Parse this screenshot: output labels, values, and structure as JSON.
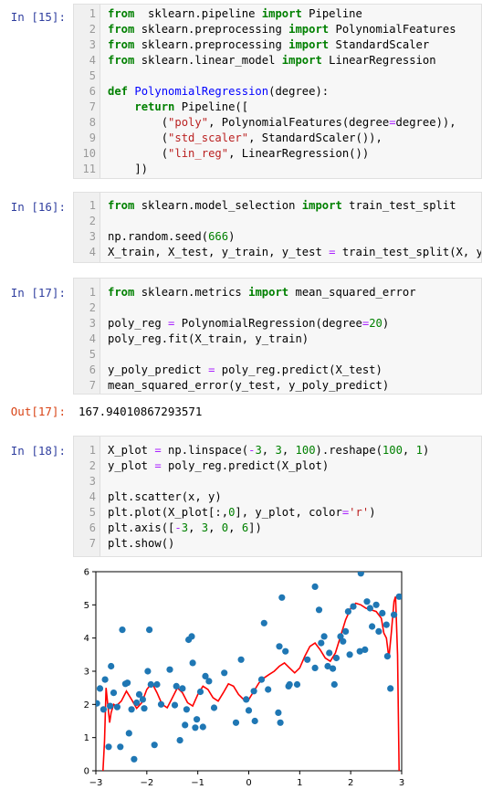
{
  "cells": [
    {
      "prompt": "In  [15]:",
      "lines": [
        [
          "1",
          [
            [
              "kw",
              "from"
            ],
            [
              "",
              "  sklearn.pipeline "
            ],
            [
              "kw",
              "import"
            ],
            [
              "",
              " Pipeline"
            ]
          ]
        ],
        [
          "2",
          [
            [
              "kw",
              "from"
            ],
            [
              "",
              " sklearn.preprocessing "
            ],
            [
              "kw",
              "import"
            ],
            [
              "",
              " PolynomialFeatures"
            ]
          ]
        ],
        [
          "3",
          [
            [
              "kw",
              "from"
            ],
            [
              "",
              " sklearn.preprocessing "
            ],
            [
              "kw",
              "import"
            ],
            [
              "",
              " StandardScaler"
            ]
          ]
        ],
        [
          "4",
          [
            [
              "kw",
              "from"
            ],
            [
              "",
              " sklearn.linear_model "
            ],
            [
              "kw",
              "import"
            ],
            [
              "",
              " LinearRegression"
            ]
          ]
        ],
        [
          "5",
          []
        ],
        [
          "6",
          [
            [
              "kw",
              "def"
            ],
            [
              "",
              " "
            ],
            [
              "fn",
              "PolynomialRegression"
            ],
            [
              "",
              "(degree):"
            ]
          ]
        ],
        [
          "7",
          [
            [
              "",
              "    "
            ],
            [
              "kw",
              "return"
            ],
            [
              "",
              " Pipeline(["
            ]
          ]
        ],
        [
          "8",
          [
            [
              "",
              "        ("
            ],
            [
              "st",
              "\"poly\""
            ],
            [
              "",
              ", PolynomialFeatures(degree"
            ],
            [
              "op",
              "="
            ],
            [
              "",
              "degree)),"
            ]
          ]
        ],
        [
          "9",
          [
            [
              "",
              "        ("
            ],
            [
              "st",
              "\"std_scaler\""
            ],
            [
              "",
              ", StandardScaler()),"
            ]
          ]
        ],
        [
          "10",
          [
            [
              "",
              "        ("
            ],
            [
              "st",
              "\"lin_reg\""
            ],
            [
              "",
              ", LinearRegression())"
            ]
          ]
        ],
        [
          "11",
          [
            [
              "",
              "    ])"
            ]
          ]
        ]
      ]
    },
    {
      "prompt": "In  [16]:",
      "lines": [
        [
          "1",
          [
            [
              "kw",
              "from"
            ],
            [
              "",
              " sklearn.model_selection "
            ],
            [
              "kw",
              "import"
            ],
            [
              "",
              " train_test_split"
            ]
          ]
        ],
        [
          "2",
          []
        ],
        [
          "3",
          [
            [
              "",
              "np.random.seed("
            ],
            [
              "nm",
              "666"
            ],
            [
              "",
              ")"
            ]
          ]
        ],
        [
          "4",
          [
            [
              "",
              "X_train, X_test, y_train, y_test "
            ],
            [
              "op",
              "="
            ],
            [
              "",
              " train_test_split(X, y)"
            ]
          ]
        ]
      ]
    },
    {
      "prompt": "In  [17]:",
      "lines": [
        [
          "1",
          [
            [
              "kw",
              "from"
            ],
            [
              "",
              " sklearn.metrics "
            ],
            [
              "kw",
              "import"
            ],
            [
              "",
              " mean_squared_error"
            ]
          ]
        ],
        [
          "2",
          []
        ],
        [
          "3",
          [
            [
              "",
              "poly_reg "
            ],
            [
              "op",
              "="
            ],
            [
              "",
              " PolynomialRegression(degree"
            ],
            [
              "op",
              "="
            ],
            [
              "nm",
              "20"
            ],
            [
              "",
              ")"
            ]
          ]
        ],
        [
          "4",
          [
            [
              "",
              "poly_reg.fit(X_train, y_train)"
            ]
          ]
        ],
        [
          "5",
          []
        ],
        [
          "6",
          [
            [
              "",
              "y_poly_predict "
            ],
            [
              "op",
              "="
            ],
            [
              "",
              " poly_reg.predict(X_test)"
            ]
          ]
        ],
        [
          "7",
          [
            [
              "",
              "mean_squared_error(y_test, y_poly_predict)"
            ]
          ]
        ]
      ]
    },
    {
      "prompt": "In  [18]:",
      "lines": [
        [
          "1",
          [
            [
              "",
              "X_plot "
            ],
            [
              "op",
              "="
            ],
            [
              "",
              " np.linspace("
            ],
            [
              "op",
              "-"
            ],
            [
              "nm",
              "3"
            ],
            [
              "",
              ", "
            ],
            [
              "nm",
              "3"
            ],
            [
              "",
              ", "
            ],
            [
              "nm",
              "100"
            ],
            [
              "",
              ").reshape("
            ],
            [
              "nm",
              "100"
            ],
            [
              "",
              ", "
            ],
            [
              "nm",
              "1"
            ],
            [
              "",
              ")"
            ]
          ]
        ],
        [
          "2",
          [
            [
              "",
              "y_plot "
            ],
            [
              "op",
              "="
            ],
            [
              "",
              " poly_reg.predict(X_plot)"
            ]
          ]
        ],
        [
          "3",
          []
        ],
        [
          "4",
          [
            [
              "",
              "plt.scatter(x, y)"
            ]
          ]
        ],
        [
          "5",
          [
            [
              "",
              "plt.plot(X_plot[:,"
            ],
            [
              "nm",
              "0"
            ],
            [
              "",
              "], y_plot, color"
            ],
            [
              "op",
              "="
            ],
            [
              "st",
              "'r'"
            ],
            [
              "",
              ")"
            ]
          ]
        ],
        [
          "6",
          [
            [
              "",
              "plt.axis(["
            ],
            [
              "op",
              "-"
            ],
            [
              "nm",
              "3"
            ],
            [
              "",
              ", "
            ],
            [
              "nm",
              "3"
            ],
            [
              "",
              ", "
            ],
            [
              "nm",
              "0"
            ],
            [
              "",
              ", "
            ],
            [
              "nm",
              "6"
            ],
            [
              "",
              "])"
            ]
          ]
        ],
        [
          "7",
          [
            [
              "",
              "plt.show()"
            ]
          ]
        ]
      ]
    }
  ],
  "output": {
    "prompt": "Out[17]:",
    "value": "167.94010867293571"
  },
  "chart_data": {
    "type": "scatter",
    "xlim": [
      -3,
      3
    ],
    "ylim": [
      0,
      6
    ],
    "x_ticks": [
      "−3",
      "−2",
      "−1",
      "0",
      "1",
      "2",
      "3"
    ],
    "y_ticks": [
      "0",
      "1",
      "2",
      "3",
      "4",
      "5",
      "6"
    ],
    "grid": false,
    "scatter_color": "#1f77b4",
    "line_color": "#ff0000",
    "points": [
      [
        -2.98,
        2.03
      ],
      [
        -2.92,
        2.48
      ],
      [
        -2.85,
        1.85
      ],
      [
        -2.82,
        2.75
      ],
      [
        -2.75,
        0.72
      ],
      [
        -2.72,
        1.95
      ],
      [
        -2.7,
        3.15
      ],
      [
        -2.65,
        2.35
      ],
      [
        -2.58,
        1.92
      ],
      [
        -2.52,
        0.72
      ],
      [
        -2.48,
        4.25
      ],
      [
        -2.42,
        2.62
      ],
      [
        -2.38,
        2.65
      ],
      [
        -2.35,
        1.13
      ],
      [
        -2.3,
        1.85
      ],
      [
        -2.25,
        0.35
      ],
      [
        -2.2,
        2.05
      ],
      [
        -2.15,
        2.3
      ],
      [
        -2.08,
        2.15
      ],
      [
        -2.05,
        1.88
      ],
      [
        -1.98,
        3.0
      ],
      [
        -1.95,
        4.25
      ],
      [
        -1.92,
        2.6
      ],
      [
        -1.85,
        0.78
      ],
      [
        -1.8,
        2.6
      ],
      [
        -1.72,
        2.0
      ],
      [
        -1.55,
        3.05
      ],
      [
        -1.45,
        1.98
      ],
      [
        -1.42,
        2.55
      ],
      [
        -1.35,
        0.92
      ],
      [
        -1.3,
        2.48
      ],
      [
        -1.25,
        1.38
      ],
      [
        -1.22,
        1.85
      ],
      [
        -1.18,
        3.95
      ],
      [
        -1.12,
        4.05
      ],
      [
        -1.1,
        3.25
      ],
      [
        -1.05,
        1.3
      ],
      [
        -1.02,
        1.55
      ],
      [
        -0.95,
        2.38
      ],
      [
        -0.9,
        1.32
      ],
      [
        -0.85,
        2.85
      ],
      [
        -0.78,
        2.7
      ],
      [
        -0.68,
        1.9
      ],
      [
        -0.48,
        2.95
      ],
      [
        -0.25,
        1.45
      ],
      [
        -0.15,
        3.35
      ],
      [
        -0.05,
        2.15
      ],
      [
        0.0,
        1.82
      ],
      [
        0.12,
        1.5
      ],
      [
        0.1,
        2.4
      ],
      [
        0.25,
        2.75
      ],
      [
        0.3,
        4.45
      ],
      [
        0.38,
        2.45
      ],
      [
        0.58,
        1.75
      ],
      [
        0.62,
        1.45
      ],
      [
        0.65,
        5.22
      ],
      [
        0.72,
        3.6
      ],
      [
        0.78,
        2.55
      ],
      [
        0.8,
        2.6
      ],
      [
        0.95,
        2.6
      ],
      [
        0.6,
        3.75
      ],
      [
        1.15,
        3.35
      ],
      [
        1.3,
        3.1
      ],
      [
        1.3,
        5.55
      ],
      [
        1.38,
        4.85
      ],
      [
        1.42,
        3.85
      ],
      [
        1.48,
        4.05
      ],
      [
        1.55,
        3.15
      ],
      [
        1.58,
        3.55
      ],
      [
        1.65,
        3.08
      ],
      [
        1.68,
        2.6
      ],
      [
        1.72,
        3.4
      ],
      [
        1.8,
        4.05
      ],
      [
        1.85,
        3.9
      ],
      [
        1.9,
        4.2
      ],
      [
        1.95,
        4.8
      ],
      [
        1.98,
        3.5
      ],
      [
        2.05,
        4.95
      ],
      [
        2.18,
        3.6
      ],
      [
        2.2,
        5.95
      ],
      [
        2.28,
        3.65
      ],
      [
        2.32,
        5.1
      ],
      [
        2.38,
        4.9
      ],
      [
        2.42,
        4.35
      ],
      [
        2.5,
        5.0
      ],
      [
        2.55,
        4.2
      ],
      [
        2.62,
        4.75
      ],
      [
        2.7,
        4.4
      ],
      [
        2.72,
        3.45
      ],
      [
        2.78,
        2.48
      ],
      [
        2.85,
        4.7
      ],
      [
        2.95,
        5.25
      ]
    ],
    "line": [
      [
        -2.86,
        0.0
      ],
      [
        -2.83,
        0.9
      ],
      [
        -2.8,
        2.5
      ],
      [
        -2.76,
        1.9
      ],
      [
        -2.73,
        1.45
      ],
      [
        -2.7,
        1.75
      ],
      [
        -2.65,
        2.0
      ],
      [
        -2.6,
        1.95
      ],
      [
        -2.5,
        2.1
      ],
      [
        -2.4,
        2.4
      ],
      [
        -2.3,
        2.15
      ],
      [
        -2.2,
        1.88
      ],
      [
        -2.1,
        2.05
      ],
      [
        -2.0,
        2.45
      ],
      [
        -1.9,
        2.65
      ],
      [
        -1.8,
        2.35
      ],
      [
        -1.7,
        2.0
      ],
      [
        -1.6,
        1.9
      ],
      [
        -1.5,
        2.2
      ],
      [
        -1.4,
        2.5
      ],
      [
        -1.3,
        2.35
      ],
      [
        -1.2,
        2.05
      ],
      [
        -1.1,
        1.95
      ],
      [
        -1.0,
        2.3
      ],
      [
        -0.9,
        2.55
      ],
      [
        -0.8,
        2.45
      ],
      [
        -0.7,
        2.2
      ],
      [
        -0.6,
        2.1
      ],
      [
        -0.5,
        2.35
      ],
      [
        -0.4,
        2.62
      ],
      [
        -0.3,
        2.55
      ],
      [
        -0.2,
        2.3
      ],
      [
        -0.1,
        2.15
      ],
      [
        0.0,
        2.15
      ],
      [
        0.1,
        2.4
      ],
      [
        0.2,
        2.65
      ],
      [
        0.3,
        2.8
      ],
      [
        0.4,
        2.9
      ],
      [
        0.5,
        3.0
      ],
      [
        0.6,
        3.15
      ],
      [
        0.7,
        3.25
      ],
      [
        0.8,
        3.1
      ],
      [
        0.9,
        2.95
      ],
      [
        1.0,
        3.1
      ],
      [
        1.1,
        3.45
      ],
      [
        1.2,
        3.75
      ],
      [
        1.3,
        3.85
      ],
      [
        1.4,
        3.65
      ],
      [
        1.5,
        3.4
      ],
      [
        1.6,
        3.3
      ],
      [
        1.7,
        3.55
      ],
      [
        1.8,
        4.05
      ],
      [
        1.9,
        4.55
      ],
      [
        2.0,
        4.9
      ],
      [
        2.1,
        5.05
      ],
      [
        2.2,
        5.0
      ],
      [
        2.3,
        4.9
      ],
      [
        2.4,
        4.85
      ],
      [
        2.5,
        4.8
      ],
      [
        2.6,
        4.6
      ],
      [
        2.65,
        4.15
      ],
      [
        2.7,
        4.0
      ],
      [
        2.75,
        3.4
      ],
      [
        2.8,
        4.2
      ],
      [
        2.85,
        5.1
      ],
      [
        2.88,
        5.25
      ],
      [
        2.92,
        3.5
      ],
      [
        2.95,
        0.0
      ]
    ]
  }
}
